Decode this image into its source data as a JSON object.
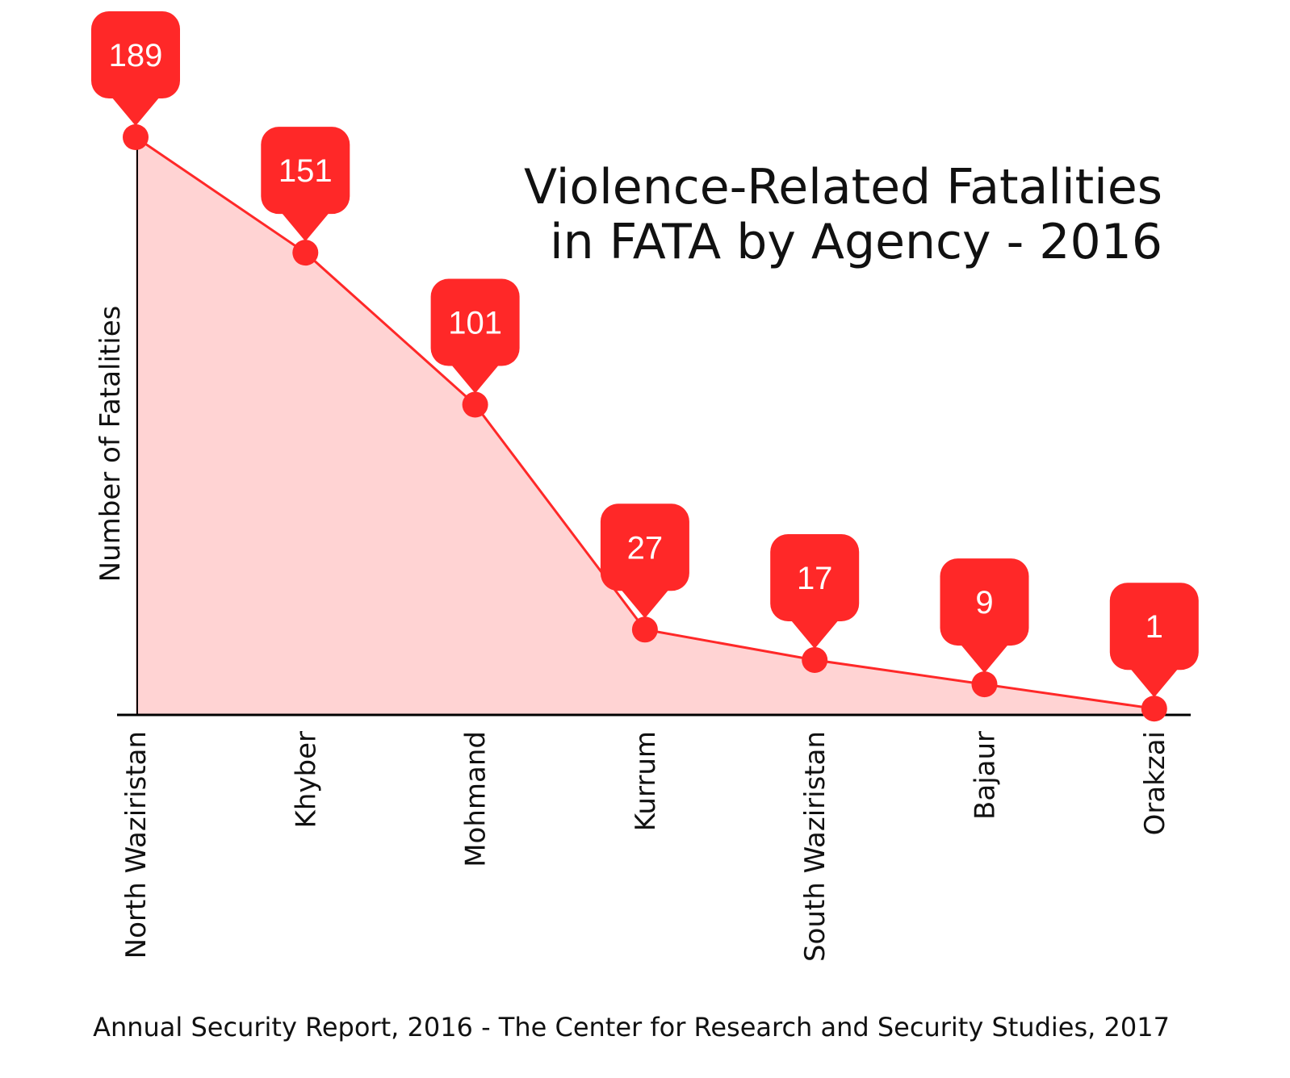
{
  "chart_data": {
    "type": "area",
    "title": [
      "Violence-Related Fatalities",
      "in FATA by Agency - 2016"
    ],
    "xlabel": "",
    "ylabel": "Number of Fatalities",
    "categories": [
      "North Waziristan",
      "Khyber",
      "Mohmand",
      "Kurrum",
      "South Waziristan",
      "Bajaur",
      "Orakzai"
    ],
    "values": [
      189,
      151,
      101,
      27,
      17,
      9,
      1
    ],
    "ylim": [
      0,
      189
    ],
    "grid": false,
    "data_labels": true,
    "colors": {
      "line": "#ff2828",
      "fill": "#ffd3d3",
      "label_bg": "#ff2828",
      "label_text": "#ffffff",
      "axis": "#000000"
    },
    "source": "Annual Security Report, 2016 - The Center for Research and Security Studies, 2017"
  }
}
